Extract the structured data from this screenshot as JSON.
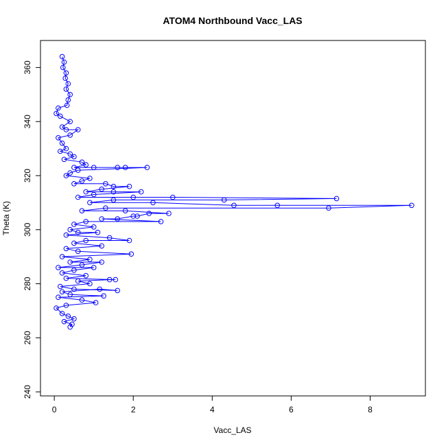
{
  "chart_data": {
    "type": "scatter",
    "title": "ATOM4 Northbound Vacc_LAS",
    "xlabel": "Vacc_LAS",
    "ylabel": "Theta (K)",
    "xlim": [
      -0.35,
      9.4
    ],
    "ylim": [
      238.5,
      370
    ],
    "x_ticks": [
      0,
      2,
      4,
      6,
      8
    ],
    "y_ticks": [
      240,
      260,
      280,
      300,
      320,
      340,
      360
    ],
    "series": [
      {
        "style": "points-and-lines",
        "color": "#0000ff",
        "marker": "open-circle",
        "points": [
          [
            0.2,
            364
          ],
          [
            0.25,
            362
          ],
          [
            0.22,
            360
          ],
          [
            0.3,
            358
          ],
          [
            0.28,
            356
          ],
          [
            0.35,
            354
          ],
          [
            0.3,
            352
          ],
          [
            0.4,
            350
          ],
          [
            0.35,
            348
          ],
          [
            0.32,
            346
          ],
          [
            0.1,
            345
          ],
          [
            0.05,
            343
          ],
          [
            0.15,
            342
          ],
          [
            0.4,
            340
          ],
          [
            0.2,
            338
          ],
          [
            0.3,
            337
          ],
          [
            0.6,
            337
          ],
          [
            0.4,
            335
          ],
          [
            0.1,
            334
          ],
          [
            0.2,
            332
          ],
          [
            0.3,
            330
          ],
          [
            0.15,
            329
          ],
          [
            0.4,
            328
          ],
          [
            0.5,
            327
          ],
          [
            0.25,
            326
          ],
          [
            0.7,
            325
          ],
          [
            0.8,
            324
          ],
          [
            0.5,
            323
          ],
          [
            1.0,
            323
          ],
          [
            1.6,
            323
          ],
          [
            1.8,
            323
          ],
          [
            2.35,
            323
          ],
          [
            0.6,
            322
          ],
          [
            0.4,
            321
          ],
          [
            0.3,
            320
          ],
          [
            0.9,
            319
          ],
          [
            0.7,
            318
          ],
          [
            0.5,
            317
          ],
          [
            1.3,
            317
          ],
          [
            1.5,
            316
          ],
          [
            1.9,
            316
          ],
          [
            1.2,
            315
          ],
          [
            0.8,
            314
          ],
          [
            1.5,
            314
          ],
          [
            2.2,
            314
          ],
          [
            1.0,
            313
          ],
          [
            0.6,
            312
          ],
          [
            2.0,
            312
          ],
          [
            3.0,
            312
          ],
          [
            7.15,
            311.5
          ],
          [
            4.3,
            311
          ],
          [
            1.5,
            311
          ],
          [
            0.9,
            310
          ],
          [
            2.5,
            310
          ],
          [
            4.55,
            309
          ],
          [
            5.65,
            309
          ],
          [
            9.05,
            309
          ],
          [
            6.95,
            308
          ],
          [
            1.3,
            308
          ],
          [
            0.7,
            307
          ],
          [
            1.8,
            307
          ],
          [
            2.9,
            306
          ],
          [
            2.4,
            306
          ],
          [
            2.1,
            305
          ],
          [
            2.0,
            305
          ],
          [
            1.6,
            304
          ],
          [
            1.2,
            304
          ],
          [
            2.7,
            303
          ],
          [
            0.8,
            303
          ],
          [
            0.5,
            302
          ],
          [
            1.0,
            301
          ],
          [
            0.4,
            300
          ],
          [
            0.6,
            299
          ],
          [
            1.1,
            299
          ],
          [
            0.3,
            298
          ],
          [
            1.4,
            297
          ],
          [
            1.9,
            296
          ],
          [
            0.8,
            296
          ],
          [
            0.5,
            295
          ],
          [
            1.2,
            294
          ],
          [
            0.3,
            293
          ],
          [
            0.6,
            292
          ],
          [
            1.95,
            291
          ],
          [
            0.2,
            290
          ],
          [
            0.9,
            289
          ],
          [
            0.4,
            288
          ],
          [
            1.2,
            288
          ],
          [
            0.7,
            287
          ],
          [
            0.1,
            286
          ],
          [
            1.0,
            286
          ],
          [
            0.5,
            285
          ],
          [
            0.2,
            284
          ],
          [
            0.8,
            283
          ],
          [
            0.3,
            282
          ],
          [
            1.55,
            281.5
          ],
          [
            1.4,
            281.5
          ],
          [
            0.6,
            281
          ],
          [
            0.9,
            280
          ],
          [
            0.15,
            279
          ],
          [
            0.5,
            278
          ],
          [
            1.6,
            277.5
          ],
          [
            1.15,
            278
          ],
          [
            0.2,
            277
          ],
          [
            0.4,
            276
          ],
          [
            1.25,
            275.5
          ],
          [
            0.1,
            275
          ],
          [
            0.7,
            274
          ],
          [
            1.05,
            273
          ],
          [
            0.3,
            272
          ],
          [
            0.05,
            271
          ],
          [
            0.2,
            269
          ],
          [
            0.35,
            268
          ],
          [
            0.5,
            267
          ],
          [
            0.25,
            266
          ],
          [
            0.45,
            265
          ],
          [
            0.4,
            264
          ]
        ]
      }
    ]
  }
}
